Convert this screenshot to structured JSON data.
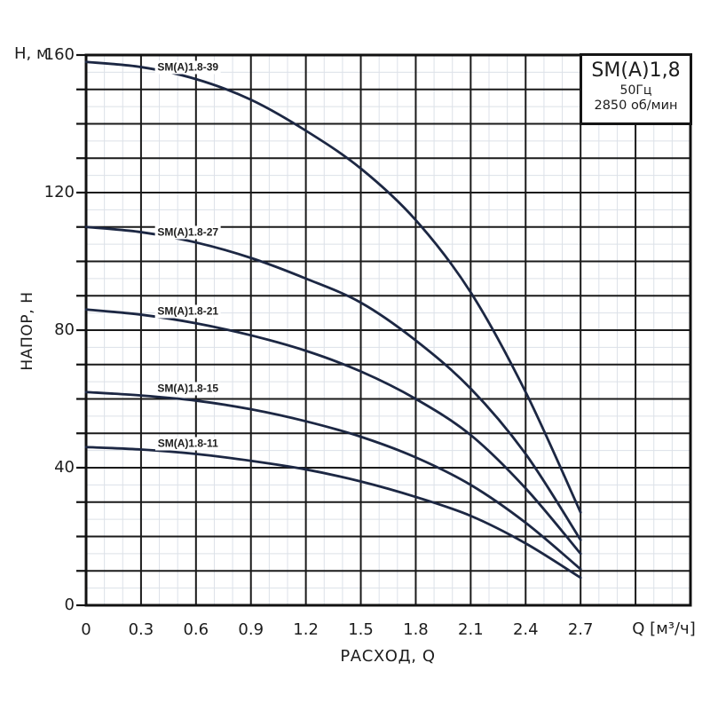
{
  "chart_data": {
    "type": "line",
    "title": "SM(A)1,8",
    "frequency": "50Гц",
    "speed": "2850 об/мин",
    "xlabel": "РАСХОД, Q",
    "ylabel": "НАПОР, Н",
    "x_unit_label": "Q [м³/ч]",
    "y_unit_label": "Н, м",
    "xlim": [
      0,
      3.3
    ],
    "ylim": [
      0,
      160
    ],
    "x_major_step": 0.3,
    "x_minor_step": 0.1,
    "y_major_step": 10,
    "y_minor_step": 5,
    "grid": true,
    "legend_position": "labels-above-curves",
    "x_ticks": [
      {
        "value": 0,
        "label": "0"
      },
      {
        "value": 0.3,
        "label": "0.3"
      },
      {
        "value": 0.6,
        "label": "0.6"
      },
      {
        "value": 0.9,
        "label": "0.9"
      },
      {
        "value": 1.2,
        "label": "1.2"
      },
      {
        "value": 1.5,
        "label": "1.5"
      },
      {
        "value": 1.8,
        "label": "1.8"
      },
      {
        "value": 2.1,
        "label": "2.1"
      },
      {
        "value": 2.4,
        "label": "2.4"
      },
      {
        "value": 2.7,
        "label": "2.7"
      }
    ],
    "y_ticks": [
      {
        "value": 160,
        "label": "160"
      },
      {
        "value": 120,
        "label": "120"
      },
      {
        "value": 80,
        "label": "80"
      },
      {
        "value": 40,
        "label": "40"
      },
      {
        "value": 0,
        "label": "0"
      }
    ],
    "colors": {
      "curve": "#1c2743",
      "major_grid": "#1a1a1a",
      "minor_grid": "#dce1e8",
      "border": "#111111",
      "text": "#1d1d1d",
      "background": "#ffffff"
    },
    "series": [
      {
        "name": "SM(A)1.8-39",
        "label_anchor": {
          "q": 0.556,
          "h": 156.5
        },
        "points": [
          [
            0,
            158
          ],
          [
            0.3,
            156.5
          ],
          [
            0.6,
            153
          ],
          [
            0.9,
            147
          ],
          [
            1.2,
            138
          ],
          [
            1.5,
            127
          ],
          [
            1.8,
            112
          ],
          [
            2.1,
            91
          ],
          [
            2.4,
            62
          ],
          [
            2.7,
            27
          ]
        ]
      },
      {
        "name": "SM(A)1.8-27",
        "label_anchor": {
          "q": 0.556,
          "h": 108.5
        },
        "points": [
          [
            0,
            110
          ],
          [
            0.3,
            108.5
          ],
          [
            0.6,
            105.5
          ],
          [
            0.9,
            101
          ],
          [
            1.2,
            95
          ],
          [
            1.5,
            88
          ],
          [
            1.8,
            77
          ],
          [
            2.1,
            63
          ],
          [
            2.4,
            44
          ],
          [
            2.7,
            19
          ]
        ]
      },
      {
        "name": "SM(A)1.8-21",
        "label_anchor": {
          "q": 0.556,
          "h": 85.3
        },
        "points": [
          [
            0,
            86
          ],
          [
            0.3,
            84.5
          ],
          [
            0.6,
            82
          ],
          [
            0.9,
            78.5
          ],
          [
            1.2,
            74
          ],
          [
            1.5,
            68
          ],
          [
            1.8,
            60
          ],
          [
            2.1,
            49.5
          ],
          [
            2.4,
            34
          ],
          [
            2.7,
            15
          ]
        ]
      },
      {
        "name": "SM(A)1.8-15",
        "label_anchor": {
          "q": 0.556,
          "h": 63
        },
        "points": [
          [
            0,
            62
          ],
          [
            0.3,
            61
          ],
          [
            0.6,
            59.5
          ],
          [
            0.9,
            57
          ],
          [
            1.2,
            53.5
          ],
          [
            1.5,
            49
          ],
          [
            1.8,
            43
          ],
          [
            2.1,
            35
          ],
          [
            2.4,
            24
          ],
          [
            2.7,
            10.5
          ]
        ]
      },
      {
        "name": "SM(A)1.8-11",
        "label_anchor": {
          "q": 0.556,
          "h": 47
        },
        "points": [
          [
            0,
            46
          ],
          [
            0.3,
            45.3
          ],
          [
            0.6,
            44
          ],
          [
            0.9,
            42
          ],
          [
            1.2,
            39.5
          ],
          [
            1.5,
            36
          ],
          [
            1.8,
            31.5
          ],
          [
            2.1,
            26
          ],
          [
            2.4,
            18
          ],
          [
            2.7,
            8
          ]
        ]
      }
    ]
  }
}
